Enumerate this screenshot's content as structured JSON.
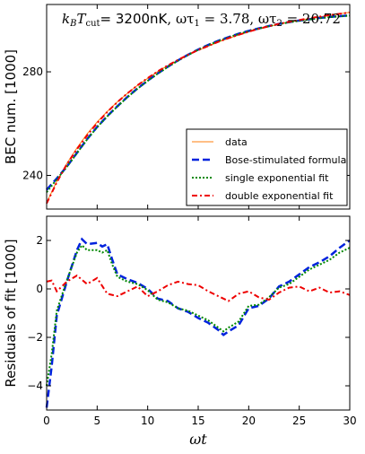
{
  "chart_data": [
    {
      "type": "line",
      "title": "k_B T_cut= 3200nK, ωτ_1 = 3.78, ωτ_2 = 20.72",
      "title_parts": {
        "lhs": "kBTcut= ",
        "temp": "3200nK",
        "sep1": ", ωτ",
        "sub1": "1",
        "eq1": " = 3.78, ωτ",
        "sub2": "2",
        "eq2": " = 20.72"
      },
      "ylabel": "BEC num. [1000]",
      "xlim": [
        0,
        30
      ],
      "ylim": [
        227,
        306
      ],
      "y_ticks": [
        240,
        280
      ],
      "grid": false,
      "legend_position": "lower-right",
      "legend": [
        "data",
        "Bose-stimulated formula",
        "single exponential fit",
        "double exponential fit"
      ],
      "series": [
        {
          "name": "data",
          "color": "#ff7f0e",
          "style": "solid",
          "x": [
            0,
            1,
            2,
            3,
            4,
            5,
            6,
            7,
            8,
            9,
            10,
            11,
            12,
            13,
            14,
            15,
            16,
            17,
            18,
            19,
            20,
            21,
            22,
            23,
            24,
            25,
            26,
            27,
            28,
            29,
            30
          ],
          "values": [
            229.5,
            237.7,
            244.6,
            250.6,
            256.0,
            260.6,
            264.7,
            268.4,
            271.7,
            274.8,
            277.5,
            280.1,
            282.4,
            284.5,
            286.5,
            288.3,
            289.9,
            291.5,
            292.9,
            294.2,
            295.4,
            296.5,
            297.5,
            298.4,
            299.2,
            299.9,
            300.6,
            301.2,
            301.8,
            302.4,
            303.0
          ]
        },
        {
          "name": "Bose-stimulated formula",
          "color": "#0022dd",
          "style": "dashed",
          "x": [
            0,
            1,
            2,
            3,
            4,
            5,
            6,
            7,
            8,
            9,
            10,
            11,
            12,
            13,
            14,
            15,
            16,
            17,
            18,
            19,
            20,
            21,
            22,
            23,
            24,
            25,
            26,
            27,
            28,
            29,
            30
          ],
          "values": [
            234.4,
            238.8,
            243.4,
            248.7,
            254.0,
            258.7,
            262.9,
            266.7,
            270.3,
            273.6,
            276.6,
            279.4,
            282.0,
            284.4,
            286.6,
            288.6,
            290.4,
            292.0,
            293.4,
            294.7,
            295.8,
            296.8,
            297.7,
            298.5,
            299.2,
            299.8,
            300.3,
            300.8,
            301.2,
            301.5,
            301.8
          ]
        },
        {
          "name": "single exponential fit",
          "color": "#008800",
          "style": "dotted",
          "x": [
            0,
            1,
            2,
            3,
            4,
            5,
            6,
            7,
            8,
            9,
            10,
            11,
            12,
            13,
            14,
            15,
            16,
            17,
            18,
            19,
            20,
            21,
            22,
            23,
            24,
            25,
            26,
            27,
            28,
            29,
            30
          ],
          "values": [
            233.5,
            238.5,
            243.3,
            248.6,
            253.9,
            258.6,
            262.8,
            266.6,
            270.2,
            273.5,
            276.5,
            279.3,
            281.9,
            284.3,
            286.5,
            288.5,
            290.3,
            291.9,
            293.3,
            294.6,
            295.7,
            296.7,
            297.6,
            298.4,
            299.1,
            299.7,
            300.2,
            300.7,
            301.1,
            301.4,
            301.7
          ]
        },
        {
          "name": "double exponential fit",
          "color": "#ee0000",
          "style": "dashdot",
          "x": [
            0,
            1,
            2,
            3,
            4,
            5,
            6,
            7,
            8,
            9,
            10,
            11,
            12,
            13,
            14,
            15,
            16,
            17,
            18,
            19,
            20,
            21,
            22,
            23,
            24,
            25,
            26,
            27,
            28,
            29,
            30
          ],
          "values": [
            229.2,
            237.3,
            244.3,
            250.1,
            255.4,
            260.2,
            264.5,
            268.3,
            271.7,
            274.8,
            277.6,
            280.2,
            282.5,
            284.6,
            286.6,
            288.4,
            290.0,
            291.6,
            293.0,
            294.3,
            295.5,
            296.6,
            297.6,
            298.5,
            299.3,
            300.0,
            300.7,
            301.3,
            301.9,
            302.4,
            302.9
          ]
        }
      ]
    },
    {
      "type": "line",
      "ylabel": "Residuals of fit [1000]",
      "xlabel": "ωt",
      "xlim": [
        0,
        30
      ],
      "ylim": [
        -5.0,
        3.0
      ],
      "x_ticks": [
        0,
        5,
        10,
        15,
        20,
        25,
        30
      ],
      "y_ticks": [
        -4,
        -2,
        0,
        2
      ],
      "grid": false,
      "series": [
        {
          "name": "Bose-stimulated formula",
          "color": "#0022dd",
          "style": "dashed",
          "x": [
            0,
            0.5,
            1,
            2,
            3,
            3.5,
            4,
            5,
            5.5,
            6,
            6.5,
            7,
            8,
            9,
            10,
            11,
            12,
            13,
            14,
            15,
            16,
            17,
            17.5,
            18,
            19,
            20,
            21,
            22,
            23,
            24,
            25,
            26,
            27,
            28,
            29,
            30
          ],
          "values": [
            -4.9,
            -3.2,
            -1.1,
            0.3,
            1.6,
            2.05,
            1.85,
            1.9,
            1.75,
            1.85,
            1.2,
            0.6,
            0.4,
            0.25,
            0.0,
            -0.4,
            -0.5,
            -0.8,
            -0.95,
            -1.2,
            -1.4,
            -1.7,
            -1.9,
            -1.75,
            -1.5,
            -0.8,
            -0.7,
            -0.4,
            0.1,
            0.3,
            0.6,
            0.9,
            1.1,
            1.35,
            1.7,
            2.0
          ]
        },
        {
          "name": "single exponential fit",
          "color": "#008800",
          "style": "dotted",
          "x": [
            0,
            0.5,
            1,
            2,
            3,
            3.5,
            4,
            5,
            5.5,
            6,
            6.5,
            7,
            8,
            9,
            10,
            11,
            12,
            13,
            14,
            15,
            16,
            17,
            17.5,
            18,
            19,
            20,
            21,
            22,
            23,
            24,
            25,
            26,
            27,
            28,
            29,
            30
          ],
          "values": [
            -4.0,
            -2.7,
            -0.9,
            0.35,
            1.5,
            1.8,
            1.6,
            1.6,
            1.5,
            1.6,
            1.0,
            0.5,
            0.3,
            0.2,
            -0.05,
            -0.45,
            -0.55,
            -0.8,
            -0.9,
            -1.1,
            -1.3,
            -1.6,
            -1.75,
            -1.6,
            -1.35,
            -0.7,
            -0.65,
            -0.35,
            0.05,
            0.2,
            0.5,
            0.8,
            1.0,
            1.2,
            1.5,
            1.7
          ]
        },
        {
          "name": "double exponential fit",
          "color": "#ee0000",
          "style": "dashdot",
          "x": [
            0,
            0.5,
            1,
            2,
            3,
            4,
            5,
            6,
            7,
            8,
            9,
            10,
            11,
            12,
            13,
            14,
            15,
            16,
            17,
            18,
            19,
            20,
            21,
            22,
            23,
            24,
            25,
            26,
            27,
            28,
            29,
            30
          ],
          "values": [
            0.3,
            0.35,
            -0.1,
            0.3,
            0.55,
            0.2,
            0.45,
            -0.2,
            -0.3,
            -0.1,
            0.1,
            -0.3,
            -0.1,
            0.15,
            0.3,
            0.2,
            0.15,
            -0.1,
            -0.3,
            -0.5,
            -0.2,
            -0.1,
            -0.35,
            -0.45,
            -0.15,
            0.05,
            0.1,
            -0.1,
            0.05,
            -0.15,
            -0.1,
            -0.25
          ]
        }
      ]
    }
  ]
}
